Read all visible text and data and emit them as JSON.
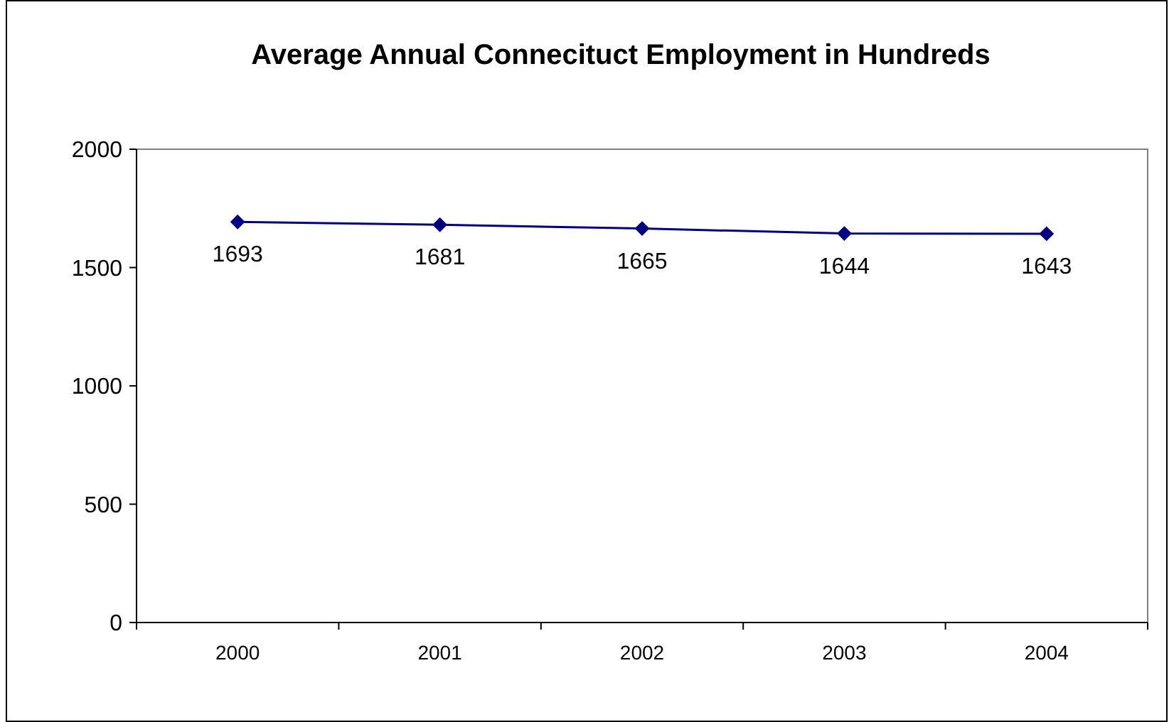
{
  "chart_data": {
    "type": "line",
    "title": "Average Annual Connecituct Employment in Hundreds",
    "categories": [
      "2000",
      "2001",
      "2002",
      "2003",
      "2004"
    ],
    "series": [
      {
        "color": "#000080",
        "values": [
          1693,
          1681,
          1665,
          1644,
          1643
        ]
      }
    ],
    "ylim": [
      0,
      2000
    ],
    "yticks": [
      0,
      500,
      1000,
      1500,
      2000
    ],
    "grid": false,
    "marker": "diamond",
    "line_style": "solid",
    "data_labels": true
  }
}
